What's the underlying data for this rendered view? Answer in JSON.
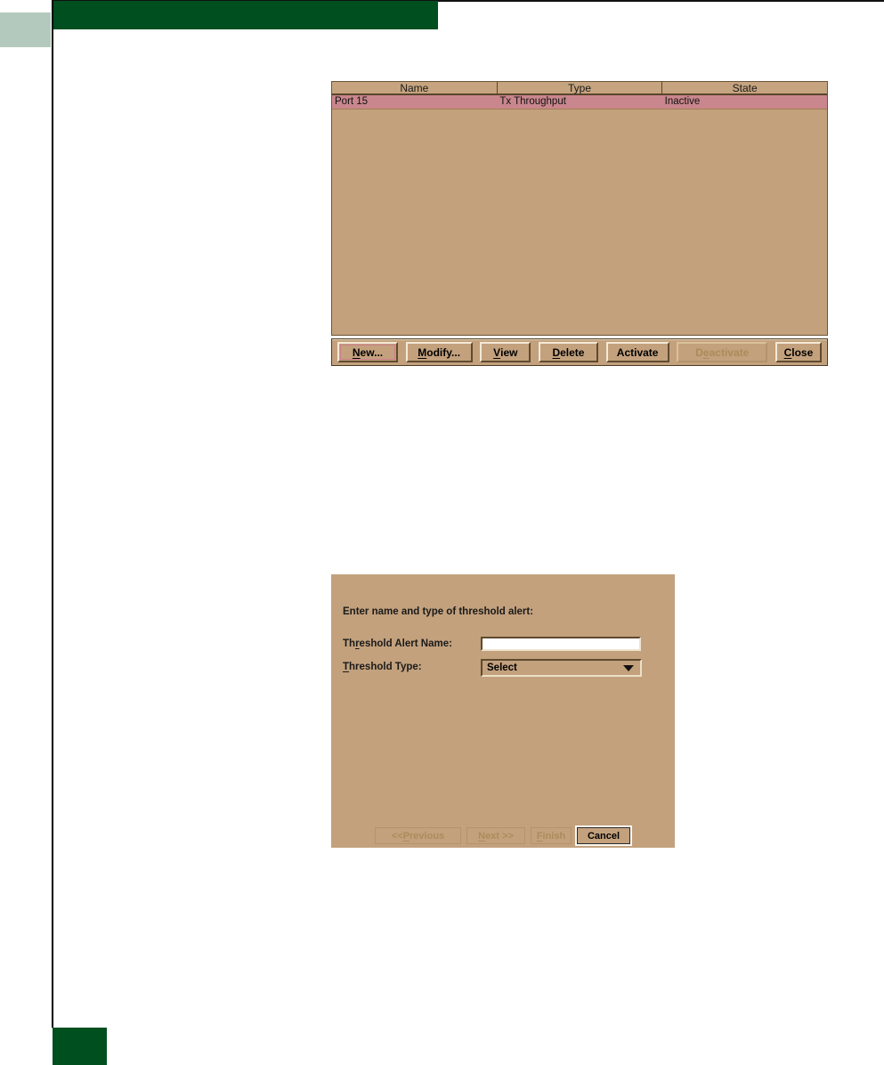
{
  "colors": {
    "header_green": "#004f1f",
    "light_green": "#b4c9bd",
    "dialog_tan": "#c3a17d",
    "selected_row_pink": "#c9868d",
    "disabled_text": "#ab8c5b"
  },
  "alerts_dialog": {
    "table": {
      "columns": [
        "Name",
        "Type",
        "State"
      ],
      "row": {
        "name": "Port 15",
        "type": "Tx Throughput",
        "state": "Inactive"
      }
    },
    "buttons": {
      "new": {
        "pre": "",
        "key": "N",
        "post": "ew..."
      },
      "modify": {
        "pre": "",
        "key": "M",
        "post": "odify..."
      },
      "view": {
        "pre": "",
        "key": "V",
        "post": "iew"
      },
      "delete": {
        "pre": "",
        "key": "D",
        "post": "elete"
      },
      "activate": {
        "pre": "Activate",
        "key": "",
        "post": ""
      },
      "deactivate": {
        "pre": "D",
        "key": "e",
        "post": "activate"
      },
      "close": {
        "pre": "",
        "key": "C",
        "post": "lose"
      }
    }
  },
  "wizard_dialog": {
    "prompt": "Enter name and type of threshold alert:",
    "name_field": {
      "label": {
        "pre": "Th",
        "key": "r",
        "post": "eshold Alert Name:"
      },
      "value": ""
    },
    "type_field": {
      "label": {
        "pre": "",
        "key": "T",
        "post": "hreshold Type:"
      },
      "value": "Select"
    },
    "buttons": {
      "previous": {
        "pre": "<< ",
        "key": "P",
        "post": "revious"
      },
      "next": {
        "pre": "",
        "key": "N",
        "post": "ext >>"
      },
      "finish": {
        "pre": "",
        "key": "F",
        "post": "inish"
      },
      "cancel": {
        "pre": "Cancel",
        "key": "",
        "post": ""
      }
    }
  }
}
